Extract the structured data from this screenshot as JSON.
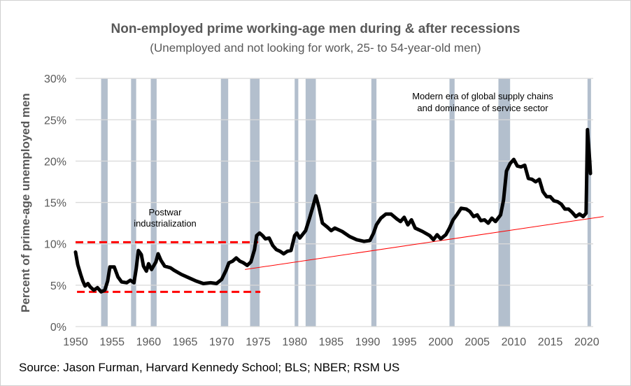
{
  "chart_data": {
    "type": "line",
    "title": "Non-employed prime working-age men during & after recessions",
    "subtitle": "(Unemployed and not looking for work, 25- to 54-year-old men)",
    "xlabel": "",
    "ylabel": "Percent of prime-age unemployed men",
    "xlim": [
      1950,
      2020.5
    ],
    "ylim": [
      0,
      30
    ],
    "x_ticks": [
      "1950",
      "1955",
      "1960",
      "1965",
      "1970",
      "1975",
      "1980",
      "1985",
      "1990",
      "1995",
      "2000",
      "2005",
      "2010",
      "2015",
      "2020"
    ],
    "y_ticks": [
      "0%",
      "5%",
      "10%",
      "15%",
      "20%",
      "25%",
      "30%"
    ],
    "grid": true,
    "colors": {
      "line": "#000000",
      "recession": "#b3bfcd",
      "annotation": "#ff0000",
      "grid": "#d9d9d9"
    },
    "recessions": [
      [
        1953.5,
        1954.4
      ],
      [
        1957.6,
        1958.3
      ],
      [
        1960.3,
        1961.1
      ],
      [
        1969.9,
        1970.9
      ],
      [
        1973.9,
        1975.2
      ],
      [
        1980.0,
        1980.5
      ],
      [
        1981.5,
        1982.9
      ],
      [
        1990.5,
        1991.2
      ],
      [
        2001.2,
        2001.9
      ],
      [
        2007.9,
        2009.5
      ],
      [
        2020.1,
        2020.5
      ]
    ],
    "series": [
      {
        "x": [
          1950,
          1950.3,
          1950.7,
          1951,
          1951.3,
          1951.7,
          1952,
          1952.5,
          1953,
          1953.5,
          1954,
          1954.4,
          1954.7,
          1955.3,
          1955.8,
          1956.3,
          1957,
          1957.5,
          1958,
          1958.3,
          1958.6,
          1959,
          1959.3,
          1959.7,
          1960,
          1960.4,
          1961,
          1961.3,
          1961.7,
          1962.2,
          1963,
          1963.5,
          1964.5,
          1965.5,
          1966.5,
          1967.5,
          1968.5,
          1969.3,
          1970,
          1970.6,
          1971,
          1971.5,
          1972,
          1972.5,
          1973,
          1973.5,
          1974,
          1974.5,
          1974.8,
          1975.2,
          1975.6,
          1976,
          1976.5,
          1977,
          1977.5,
          1978,
          1978.5,
          1979,
          1979.5,
          1980,
          1980.3,
          1980.7,
          1981.5,
          1982,
          1982.5,
          1982.9,
          1983.3,
          1983.8,
          1984.5,
          1985,
          1985.5,
          1986.5,
          1987.5,
          1988.5,
          1989.5,
          1990.3,
          1990.8,
          1991.2,
          1991.8,
          1992.5,
          1993.2,
          1994,
          1994.5,
          1995,
          1995.5,
          1996,
          1996.5,
          1997.5,
          1998.5,
          1999,
          1999.5,
          2000,
          2000.7,
          2001.2,
          2001.7,
          2002.2,
          2002.8,
          2003.5,
          2004,
          2004.5,
          2005,
          2005.5,
          2006,
          2006.5,
          2007,
          2007.5,
          2008.2,
          2008.6,
          2009,
          2009.5,
          2010,
          2010.5,
          2011,
          2011.5,
          2012,
          2012.5,
          2013,
          2013.5,
          2014,
          2014.5,
          2015,
          2015.5,
          2016,
          2016.5,
          2017,
          2017.5,
          2018,
          2018.5,
          2019,
          2019.5,
          2019.9,
          2020.1,
          2020.4,
          2020.5
        ],
        "y": [
          9.0,
          7.5,
          6.3,
          5.5,
          4.9,
          5.2,
          4.8,
          4.4,
          4.7,
          4.2,
          4.4,
          5.5,
          7.2,
          7.2,
          6.0,
          5.4,
          5.3,
          5.6,
          5.3,
          7.0,
          9.2,
          8.7,
          7.3,
          6.7,
          7.6,
          6.9,
          7.8,
          8.8,
          8.0,
          7.3,
          7.1,
          6.8,
          6.3,
          5.9,
          5.5,
          5.2,
          5.3,
          5.2,
          5.7,
          6.8,
          7.7,
          7.9,
          8.3,
          7.9,
          7.7,
          7.4,
          7.8,
          9.3,
          11.0,
          11.3,
          11.0,
          10.6,
          10.7,
          9.8,
          9.3,
          9.1,
          8.8,
          9.1,
          9.2,
          11.0,
          11.3,
          10.7,
          11.6,
          13.0,
          14.5,
          15.8,
          14.5,
          12.5,
          12.0,
          11.6,
          11.9,
          11.5,
          10.9,
          10.5,
          10.3,
          10.4,
          11.3,
          12.3,
          13.1,
          13.6,
          13.6,
          13.0,
          12.7,
          13.2,
          12.3,
          12.9,
          11.9,
          11.5,
          11.0,
          10.5,
          11.1,
          10.6,
          11.1,
          11.9,
          12.9,
          13.5,
          14.3,
          14.2,
          13.9,
          13.3,
          13.5,
          12.8,
          12.9,
          12.5,
          13.1,
          12.7,
          13.5,
          15.3,
          18.8,
          19.7,
          20.2,
          19.4,
          19.3,
          19.5,
          17.9,
          17.8,
          17.5,
          17.8,
          16.3,
          15.7,
          15.7,
          15.2,
          15.1,
          14.8,
          14.2,
          14.2,
          13.8,
          13.3,
          13.6,
          13.3,
          13.7,
          23.8,
          20.0,
          18.5
        ]
      }
    ],
    "reference_lines": {
      "upper_dashed": {
        "y": 10.2,
        "x": [
          1950,
          1975
        ]
      },
      "lower_dashed": {
        "y": 4.2,
        "x": [
          1950.2,
          1975.3
        ]
      },
      "trend": {
        "x": [
          1973.2,
          2022.3
        ],
        "y": [
          6.9,
          13.3
        ]
      }
    },
    "annotations": [
      {
        "lines": [
          "Postwar",
          "industrialization"
        ]
      },
      {
        "lines": [
          "Modern era of global supply chains",
          "and dominance of service sector"
        ]
      }
    ]
  },
  "source": "Source: Jason Furman, Harvard Kennedy School; BLS; NBER; RSM US"
}
